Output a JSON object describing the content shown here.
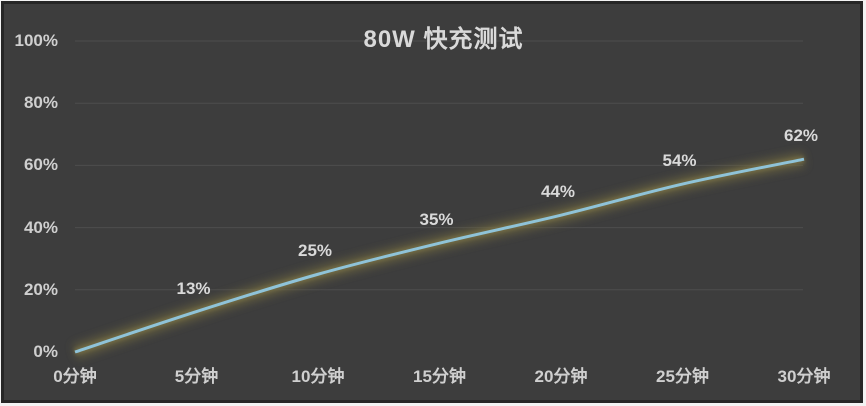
{
  "page": {
    "background": "#3d3d3d",
    "frame_border": "#262626",
    "outer_edge": "#f2f2f2"
  },
  "chart_data": {
    "type": "line",
    "title": "80W 快充测试",
    "xlabel": "",
    "ylabel": "",
    "x": [
      0,
      5,
      10,
      15,
      20,
      25,
      30
    ],
    "x_tick_labels": [
      "0分钟",
      "5分钟",
      "10分钟",
      "15分钟",
      "20分钟",
      "25分钟",
      "30分钟"
    ],
    "values": [
      0,
      13,
      25,
      35,
      44,
      54,
      62
    ],
    "data_labels": [
      "",
      "13%",
      "25%",
      "35%",
      "44%",
      "54%",
      "62%"
    ],
    "xlim": [
      0,
      30
    ],
    "ylim": [
      0,
      100
    ],
    "y_ticks": [
      0,
      20,
      40,
      60,
      80,
      100
    ],
    "y_tick_labels": [
      "0%",
      "20%",
      "40%",
      "60%",
      "80%",
      "100%"
    ],
    "grid": true,
    "grid_ticks_drawn": [
      20,
      40,
      60,
      80,
      100
    ],
    "legend": "none",
    "colors": {
      "line": "#8fc3d8",
      "line_glow_outer": "#6e673f",
      "line_glow_inner": "#7d744a",
      "background": "#3d3d3d",
      "gridline": "#505050",
      "tick_text": "#cfcfcf",
      "label_text": "#d9d9d9",
      "title_text": "#d9d9d9"
    }
  }
}
